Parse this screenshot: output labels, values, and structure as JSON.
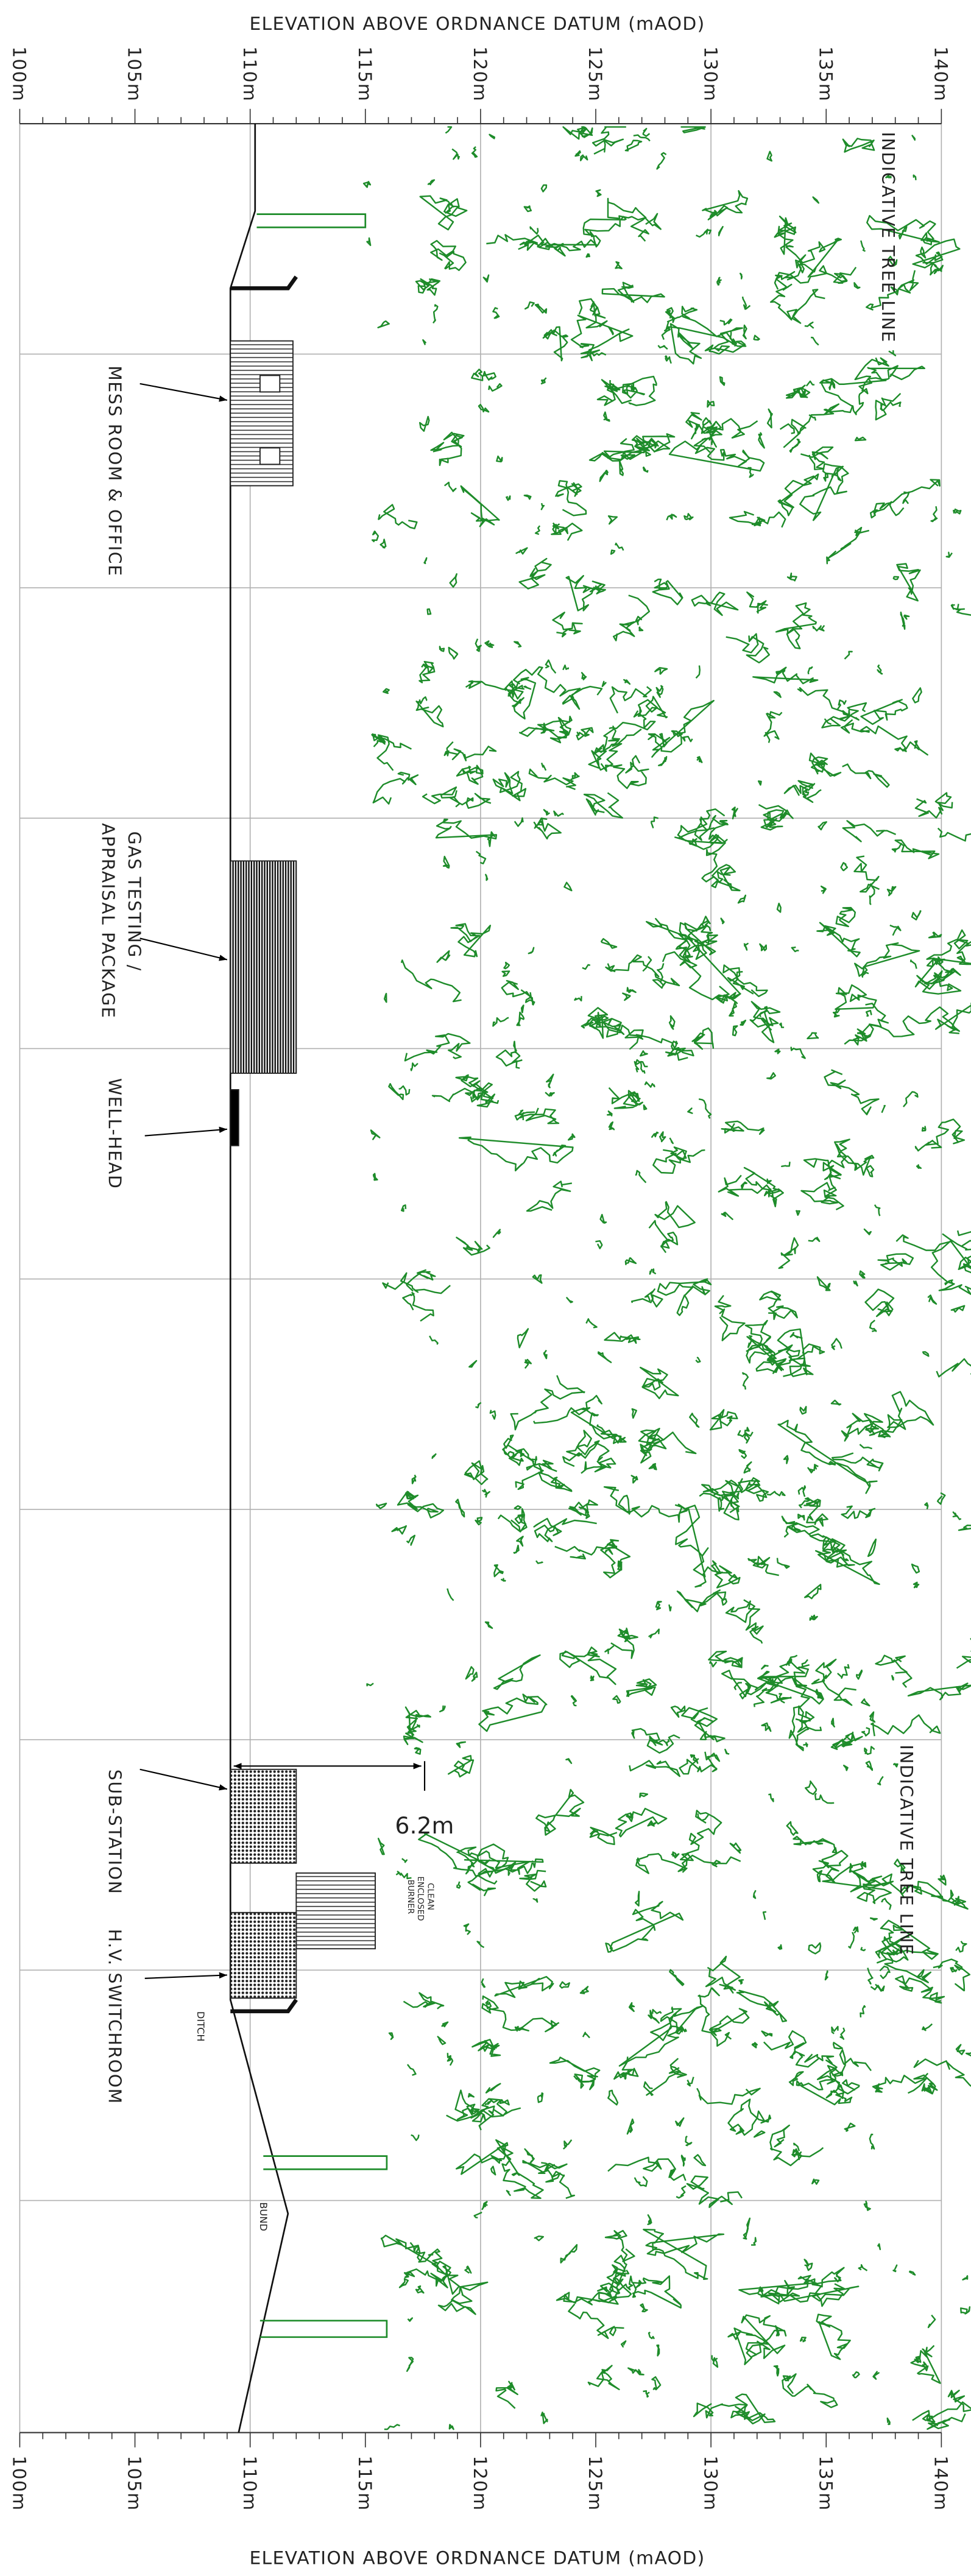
{
  "axis": {
    "title": "ELEVATION ABOVE ORDNANCE DATUM (mAOD)",
    "tick_labels": [
      "100m",
      "105m",
      "110m",
      "115m",
      "120m",
      "125m",
      "130m",
      "135m",
      "140m"
    ]
  },
  "labels": {
    "tree_line_top": "INDICATIVE TREE LINE",
    "mess_room": "MESS ROOM & OFFICE",
    "gas_testing": [
      "GAS TESTING /",
      "APPRAISAL PACKAGE"
    ],
    "well_head": "WELL-HEAD",
    "sub_station": "SUB-STATION",
    "hv_switchroom": "H.V. SWITCHROOM",
    "tree_line_bottom": "INDICATIVE TREE LINE",
    "dimension": "6.2m",
    "burner": [
      "CLEAN",
      "ENCLOSED",
      "BURNER"
    ],
    "ditch": "DITCH",
    "bund": "BUND"
  }
}
